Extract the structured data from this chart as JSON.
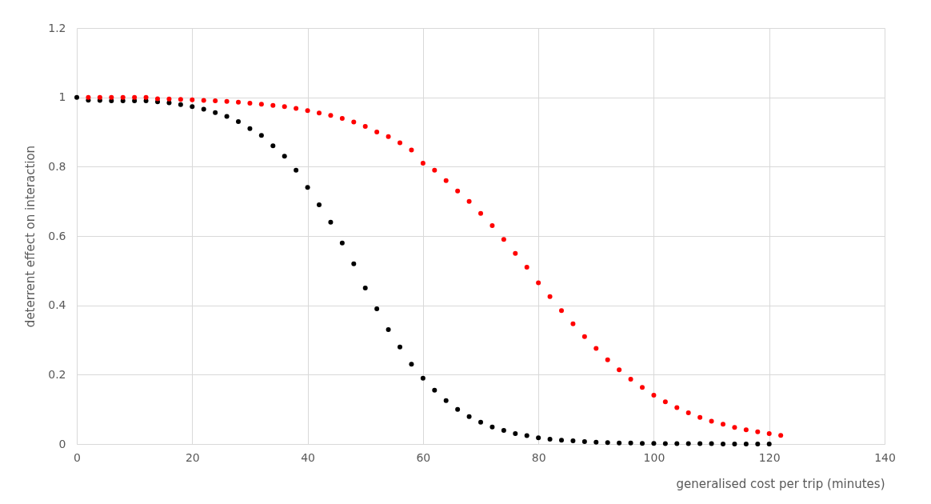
{
  "chart_data": {
    "type": "scatter",
    "xlabel": "generalised  cost per trip  (minutes)",
    "ylabel": "deterrent  effect  on  interaction",
    "x": [
      0,
      2,
      4,
      6,
      8,
      10,
      12,
      14,
      16,
      18,
      20,
      22,
      24,
      26,
      28,
      30,
      32,
      34,
      36,
      38,
      40,
      42,
      44,
      46,
      48,
      50,
      52,
      54,
      56,
      58,
      60,
      62,
      64,
      66,
      68,
      70,
      72,
      74,
      76,
      78,
      80,
      82,
      84,
      86,
      88,
      90,
      92,
      94,
      96,
      98,
      100,
      102,
      104,
      106,
      108,
      110,
      112,
      114,
      116,
      118,
      120
    ],
    "series": [
      {
        "color": "#000000",
        "values": [
          1.0,
          0.992,
          0.991,
          0.99,
          0.99,
          0.99,
          0.99,
          0.987,
          0.984,
          0.979,
          0.973,
          0.966,
          0.956,
          0.945,
          0.93,
          0.91,
          0.89,
          0.86,
          0.83,
          0.79,
          0.74,
          0.69,
          0.64,
          0.58,
          0.52,
          0.45,
          0.39,
          0.33,
          0.28,
          0.23,
          0.19,
          0.155,
          0.125,
          0.1,
          0.079,
          0.063,
          0.049,
          0.039,
          0.03,
          0.024,
          0.018,
          0.014,
          0.011,
          0.009,
          0.007,
          0.005,
          0.004,
          0.003,
          0.003,
          0.002,
          0.002,
          0.001,
          0.001,
          0.001,
          0.001,
          0.001,
          0.0,
          0.0,
          0.0,
          0.0,
          0.0
        ]
      },
      {
        "color": "#ff0000",
        "x": [
          2,
          4,
          6,
          8,
          10,
          12,
          14,
          16,
          18,
          20,
          22,
          24,
          26,
          28,
          30,
          32,
          34,
          36,
          38,
          40,
          42,
          44,
          46,
          48,
          50,
          52,
          54,
          56,
          58,
          60,
          62,
          64,
          66,
          68,
          70,
          72,
          74,
          76,
          78,
          80,
          82,
          84,
          86,
          88,
          90,
          92,
          94,
          96,
          98,
          100,
          102,
          104,
          106,
          108,
          110,
          112,
          114,
          116,
          118,
          120,
          122
        ],
        "values": [
          1.0,
          1.0,
          1.0,
          1.0,
          1.0,
          1.0,
          0.996,
          0.995,
          0.994,
          0.993,
          0.991,
          0.99,
          0.988,
          0.986,
          0.983,
          0.98,
          0.977,
          0.973,
          0.968,
          0.962,
          0.955,
          0.948,
          0.939,
          0.929,
          0.916,
          0.9,
          0.887,
          0.869,
          0.848,
          0.81,
          0.79,
          0.76,
          0.73,
          0.7,
          0.665,
          0.63,
          0.59,
          0.55,
          0.51,
          0.465,
          0.425,
          0.385,
          0.347,
          0.31,
          0.276,
          0.243,
          0.214,
          0.187,
          0.163,
          0.141,
          0.122,
          0.105,
          0.09,
          0.077,
          0.066,
          0.057,
          0.048,
          0.041,
          0.035,
          0.03,
          0.025
        ]
      }
    ],
    "xlim": [
      0,
      140
    ],
    "xticks": [
      0,
      20,
      40,
      60,
      80,
      100,
      120,
      140
    ],
    "ylim": [
      0,
      1.2
    ],
    "yticks": [
      0,
      0.2,
      0.4,
      0.6,
      0.8,
      1,
      1.2
    ],
    "grid": true,
    "marker": "circle"
  }
}
